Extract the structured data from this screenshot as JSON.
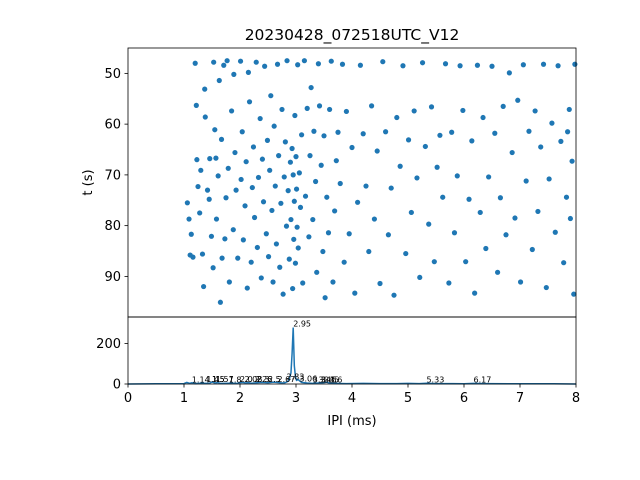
{
  "chart_data": [
    {
      "type": "scatter",
      "title": "20230428_072518UTC_V12",
      "xlabel": "",
      "ylabel": "t (s)",
      "xlim": [
        0,
        8
      ],
      "ylim": [
        98,
        45
      ],
      "y_inverted": true,
      "yticks": [
        50,
        60,
        70,
        80,
        90
      ],
      "marker_color": "#1f77b4",
      "grid": false,
      "series": [
        {
          "points": [
            [
              1.06,
              75.5
            ],
            [
              1.09,
              78.7
            ],
            [
              1.11,
              85.8
            ],
            [
              1.13,
              81.7
            ],
            [
              1.16,
              86.2
            ],
            [
              1.2,
              48
            ],
            [
              1.22,
              56.3
            ],
            [
              1.23,
              67
            ],
            [
              1.25,
              72.3
            ],
            [
              1.28,
              77.5
            ],
            [
              1.3,
              69.1
            ],
            [
              1.33,
              85.6
            ],
            [
              1.35,
              92
            ],
            [
              1.37,
              53.1
            ],
            [
              1.38,
              58.6
            ],
            [
              1.42,
              73
            ],
            [
              1.45,
              74.8
            ],
            [
              1.46,
              66.8
            ],
            [
              1.49,
              82.1
            ],
            [
              1.53,
              47.8
            ],
            [
              1.52,
              88.3
            ],
            [
              1.55,
              61.1
            ],
            [
              1.57,
              66.7
            ],
            [
              1.58,
              78.7
            ],
            [
              1.61,
              70.2
            ],
            [
              1.63,
              51.4
            ],
            [
              1.65,
              95.1
            ],
            [
              1.67,
              63
            ],
            [
              1.68,
              86.4
            ],
            [
              1.71,
              48.4
            ],
            [
              1.73,
              82.6
            ],
            [
              1.75,
              74.5
            ],
            [
              1.77,
              47.5
            ],
            [
              1.79,
              68.7
            ],
            [
              1.81,
              91.1
            ],
            [
              1.85,
              57.4
            ],
            [
              1.88,
              80.8
            ],
            [
              1.89,
              50.2
            ],
            [
              1.91,
              65.6
            ],
            [
              1.93,
              73
            ],
            [
              1.96,
              86.4
            ],
            [
              2.01,
              47.6
            ],
            [
              2.02,
              70.9
            ],
            [
              2.04,
              61.5
            ],
            [
              2.06,
              82.8
            ],
            [
              2.09,
              76.1
            ],
            [
              2.11,
              67.4
            ],
            [
              2.13,
              92.3
            ],
            [
              2.15,
              49.8
            ],
            [
              2.17,
              55.6
            ],
            [
              2.2,
              87.2
            ],
            [
              2.22,
              72.5
            ],
            [
              2.24,
              64.5
            ],
            [
              2.26,
              78.4
            ],
            [
              2.29,
              47.8
            ],
            [
              2.31,
              84.3
            ],
            [
              2.33,
              70.5
            ],
            [
              2.36,
              58.9
            ],
            [
              2.38,
              90.3
            ],
            [
              2.4,
              66.9
            ],
            [
              2.42,
              75.3
            ],
            [
              2.44,
              48.6
            ],
            [
              2.47,
              81.6
            ],
            [
              2.49,
              63.2
            ],
            [
              2.51,
              86.1
            ],
            [
              2.53,
              69.1
            ],
            [
              2.55,
              54.4
            ],
            [
              2.57,
              77
            ],
            [
              2.59,
              91.1
            ],
            [
              2.61,
              60.4
            ],
            [
              2.63,
              72.2
            ],
            [
              2.65,
              83.6
            ],
            [
              2.67,
              48.2
            ],
            [
              2.69,
              66.2
            ],
            [
              2.71,
              88.2
            ],
            [
              2.73,
              75.6
            ],
            [
              2.75,
              57.1
            ],
            [
              2.77,
              93.5
            ],
            [
              2.79,
              70.4
            ],
            [
              2.81,
              63.5
            ],
            [
              2.83,
              80.1
            ],
            [
              2.84,
              47.5
            ],
            [
              2.86,
              73.1
            ],
            [
              2.88,
              86.6
            ],
            [
              2.9,
              67.5
            ],
            [
              2.91,
              78.8
            ],
            [
              2.93,
              64.8
            ],
            [
              2.94,
              92.4
            ],
            [
              2.95,
              70
            ],
            [
              2.96,
              82.7
            ],
            [
              2.97,
              75.2
            ],
            [
              2.98,
              58.3
            ],
            [
              2.99,
              87.4
            ],
            [
              3.0,
              66.4
            ],
            [
              3.01,
              72.8
            ],
            [
              3.02,
              80.3
            ],
            [
              3.03,
              48.3
            ],
            [
              3.04,
              84.4
            ],
            [
              3.06,
              69.6
            ],
            [
              3.08,
              76.4
            ],
            [
              3.1,
              62.1
            ],
            [
              3.12,
              91.3
            ],
            [
              3.15,
              47.5
            ],
            [
              3.17,
              74.2
            ],
            [
              3.2,
              56.9
            ],
            [
              3.23,
              82.2
            ],
            [
              3.25,
              66.2
            ],
            [
              3.27,
              52.8
            ],
            [
              3.3,
              78.8
            ],
            [
              3.32,
              61.4
            ],
            [
              3.35,
              71.3
            ],
            [
              3.37,
              89.2
            ],
            [
              3.4,
              48.1
            ],
            [
              3.42,
              56.4
            ],
            [
              3.45,
              68.1
            ],
            [
              3.48,
              85.1
            ],
            [
              3.5,
              62.3
            ],
            [
              3.52,
              94.2
            ],
            [
              3.55,
              74.4
            ],
            [
              3.58,
              81.4
            ],
            [
              3.6,
              57.1
            ],
            [
              3.63,
              47.6
            ],
            [
              3.66,
              91.1
            ],
            [
              3.69,
              77.1
            ],
            [
              3.72,
              67.2
            ],
            [
              3.75,
              61.6
            ],
            [
              3.79,
              71.7
            ],
            [
              3.83,
              48.2
            ],
            [
              3.86,
              87.2
            ],
            [
              3.9,
              57.5
            ],
            [
              3.95,
              81.6
            ],
            [
              4.0,
              64.6
            ],
            [
              4.05,
              93.3
            ],
            [
              4.1,
              75.4
            ],
            [
              4.15,
              48.4
            ],
            [
              4.2,
              61.9
            ],
            [
              4.25,
              72.2
            ],
            [
              4.3,
              85.1
            ],
            [
              4.35,
              56.4
            ],
            [
              4.4,
              78.7
            ],
            [
              4.45,
              65.3
            ],
            [
              4.5,
              91.4
            ],
            [
              4.55,
              47.7
            ],
            [
              4.6,
              61.5
            ],
            [
              4.65,
              81.8
            ],
            [
              4.7,
              72.6
            ],
            [
              4.75,
              93.7
            ],
            [
              4.8,
              58.7
            ],
            [
              4.86,
              68.3
            ],
            [
              4.91,
              48.5
            ],
            [
              4.96,
              85.5
            ],
            [
              5.01,
              63.1
            ],
            [
              5.06,
              77.4
            ],
            [
              5.11,
              57.4
            ],
            [
              5.16,
              70.6
            ],
            [
              5.21,
              90.2
            ],
            [
              5.26,
              47.9
            ],
            [
              5.31,
              64.4
            ],
            [
              5.37,
              79.7
            ],
            [
              5.42,
              56.6
            ],
            [
              5.47,
              87.1
            ],
            [
              5.52,
              68.5
            ],
            [
              5.57,
              62.2
            ],
            [
              5.62,
              74.4
            ],
            [
              5.67,
              48.1
            ],
            [
              5.73,
              91.3
            ],
            [
              5.78,
              61.6
            ],
            [
              5.83,
              81.4
            ],
            [
              5.88,
              70.2
            ],
            [
              5.93,
              48.5
            ],
            [
              5.98,
              57.3
            ],
            [
              6.03,
              87.1
            ],
            [
              6.09,
              74.8
            ],
            [
              6.14,
              63.3
            ],
            [
              6.19,
              93.3
            ],
            [
              6.24,
              48.4
            ],
            [
              6.29,
              77.4
            ],
            [
              6.34,
              58.7
            ],
            [
              6.39,
              84.5
            ],
            [
              6.44,
              70.4
            ],
            [
              6.5,
              48.6
            ],
            [
              6.55,
              61.8
            ],
            [
              6.6,
              89.2
            ],
            [
              6.65,
              74.5
            ],
            [
              6.7,
              56.5
            ],
            [
              6.75,
              81.8
            ],
            [
              6.81,
              49.9
            ],
            [
              6.86,
              65.6
            ],
            [
              6.91,
              78.5
            ],
            [
              6.96,
              55.3
            ],
            [
              7.01,
              91.1
            ],
            [
              7.06,
              48.3
            ],
            [
              7.11,
              71.2
            ],
            [
              7.16,
              61.4
            ],
            [
              7.22,
              84.7
            ],
            [
              7.27,
              57.4
            ],
            [
              7.32,
              77.2
            ],
            [
              7.37,
              64.5
            ],
            [
              7.42,
              48.2
            ],
            [
              7.47,
              92.2
            ],
            [
              7.52,
              70.8
            ],
            [
              7.57,
              59.8
            ],
            [
              7.63,
              81.3
            ],
            [
              7.68,
              48.5
            ],
            [
              7.73,
              63.4
            ],
            [
              7.78,
              87.3
            ],
            [
              7.83,
              74.4
            ],
            [
              7.88,
              57.1
            ],
            [
              7.93,
              67.3
            ],
            [
              7.98,
              48.2
            ],
            [
              7.96,
              93.5
            ],
            [
              7.9,
              78.6
            ],
            [
              7.85,
              61.5
            ]
          ]
        }
      ]
    },
    {
      "type": "area",
      "title": "",
      "xlabel": "IPI (ms)",
      "ylabel": "",
      "xlim": [
        0,
        8
      ],
      "ylim": [
        0,
        330
      ],
      "xticks": [
        0,
        1,
        2,
        3,
        4,
        5,
        6,
        7,
        8
      ],
      "yticks": [
        0,
        200
      ],
      "line_color": "#1f77b4",
      "grid": false,
      "x": [
        0,
        0.5,
        1.0,
        1.05,
        1.1,
        1.14,
        1.2,
        1.3,
        1.45,
        1.5,
        1.55,
        1.6,
        1.65,
        1.8,
        1.95,
        2.0,
        2.05,
        2.1,
        2.15,
        2.2,
        2.3,
        2.4,
        2.5,
        2.6,
        2.7,
        2.75,
        2.8,
        2.85,
        2.88,
        2.91,
        2.93,
        2.95,
        2.97,
        2.99,
        3.01,
        3.04,
        3.06,
        3.1,
        3.2,
        3.3,
        3.4,
        3.5,
        3.55,
        3.6,
        3.7,
        3.9,
        4.2,
        4.5,
        4.8,
        5.0,
        5.2,
        5.33,
        5.5,
        5.8,
        6.0,
        6.17,
        6.4,
        6.8,
        7.2,
        7.6,
        8.0
      ],
      "y": [
        0,
        1,
        2,
        8,
        3,
        6,
        2,
        4,
        3,
        10,
        5,
        7,
        3,
        4,
        3,
        6,
        8,
        5,
        7,
        4,
        6,
        8,
        6,
        9,
        7,
        5,
        6,
        12,
        24,
        55,
        150,
        278,
        90,
        36,
        18,
        22,
        16,
        8,
        5,
        3,
        5,
        7,
        9,
        4,
        3,
        2,
        3,
        2,
        2,
        3,
        2,
        4,
        2,
        2,
        1,
        3,
        2,
        1,
        1,
        1,
        0
      ],
      "peak_labels": [
        {
          "x": 1.14,
          "y": 3,
          "label": "1.14"
        },
        {
          "x": 1.4,
          "y": 5,
          "label": "1.4"
        },
        {
          "x": 1.5,
          "y": 5,
          "label": "1.5"
        },
        {
          "x": 1.5,
          "y": 5,
          "label": "1.5"
        },
        {
          "x": 1.57,
          "y": 5,
          "label": "1.57"
        },
        {
          "x": 1.8,
          "y": 2,
          "label": "1.8"
        },
        {
          "x": 2.0,
          "y": 4,
          "label": "2.0"
        },
        {
          "x": 2.08,
          "y": 4,
          "label": "2.08"
        },
        {
          "x": 2.26,
          "y": 4,
          "label": "2.26"
        },
        {
          "x": 2.3,
          "y": 4,
          "label": "2.3"
        },
        {
          "x": 2.5,
          "y": 4,
          "label": "2.5"
        },
        {
          "x": 2.67,
          "y": 4,
          "label": "2.67"
        },
        {
          "x": 2.83,
          "y": 18,
          "label": "2.83"
        },
        {
          "x": 2.95,
          "y": 278,
          "label": "2.95"
        },
        {
          "x": 3.06,
          "y": 8,
          "label": "3.06"
        },
        {
          "x": 3.3,
          "y": 2,
          "label": "3.3"
        },
        {
          "x": 3.4,
          "y": 2,
          "label": "3.4"
        },
        {
          "x": 3.45,
          "y": 2,
          "label": "3.45"
        },
        {
          "x": 3.5,
          "y": 2,
          "label": "3.5"
        },
        {
          "x": 3.6,
          "y": 2,
          "label": "3.6"
        },
        {
          "x": 5.33,
          "y": 2,
          "label": "5.33"
        },
        {
          "x": 6.17,
          "y": 2,
          "label": "6.17"
        }
      ]
    }
  ]
}
